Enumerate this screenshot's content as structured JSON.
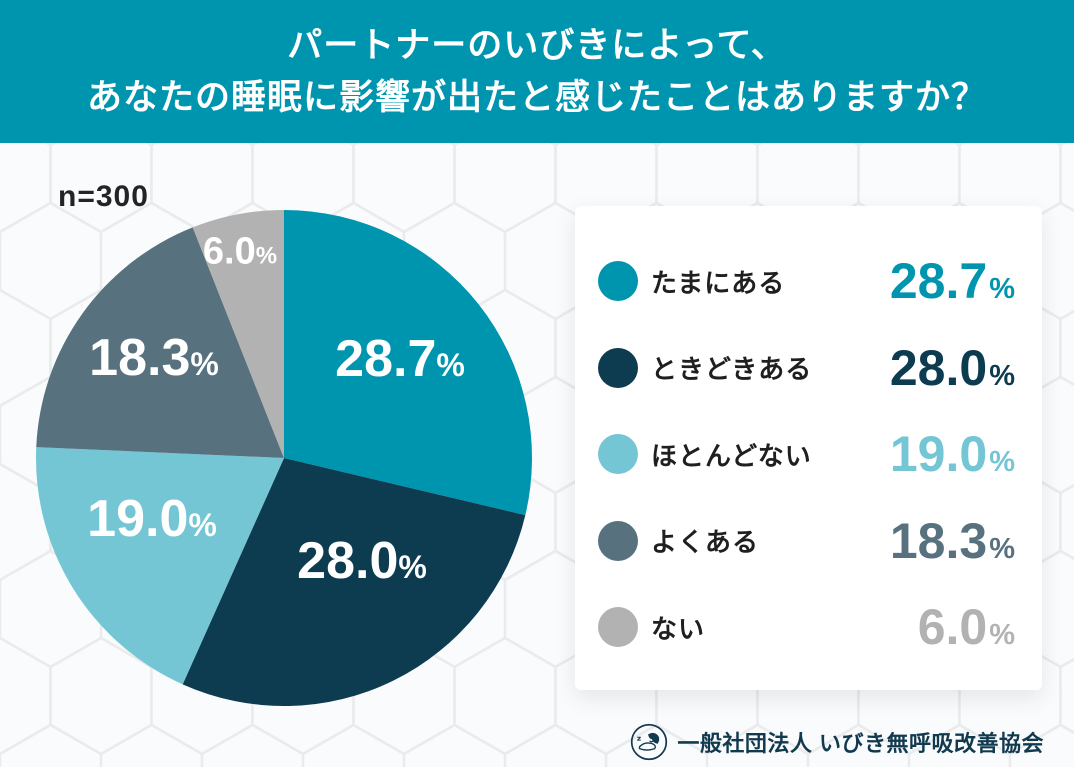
{
  "header": {
    "title_line1": "パートナーのいびきによって、",
    "title_line2": "あなたの睡眠に影響が出たと感じたことはありますか？",
    "bg_color": "#0095AE",
    "text_color": "#FFFFFF"
  },
  "sample_label": "n=300",
  "unit": "%",
  "chart_data": {
    "type": "pie",
    "title": "パートナーのいびきによって、あなたの睡眠に影響が出たと感じたことはありますか？",
    "sample_size": 300,
    "start_angle_deg": 0,
    "direction": "clockwise",
    "legend_position": "right",
    "slices": [
      {
        "label": "たまにある",
        "value": 28.7,
        "display": "28.7",
        "color": "#0095AE"
      },
      {
        "label": "ときどきある",
        "value": 28.0,
        "display": "28.0",
        "color": "#0D3B50"
      },
      {
        "label": "ほとんどない",
        "value": 19.0,
        "display": "19.0",
        "color": "#74C6D4"
      },
      {
        "label": "よくある",
        "value": 18.3,
        "display": "18.3",
        "color": "#57717F"
      },
      {
        "label": "ない",
        "value": 6.0,
        "display": "6.0",
        "color": "#B2B2B2"
      }
    ],
    "slice_label_color": "#FFFFFF"
  },
  "footer": {
    "org_name": "一般社団法人 いびき無呼吸改善協会",
    "logo": "sleeping-face-logo",
    "text_color": "#123A4F"
  },
  "background": {
    "pattern": "hexagons",
    "base_color": "#F5F6F7",
    "line_color": "#E8EAEC"
  }
}
